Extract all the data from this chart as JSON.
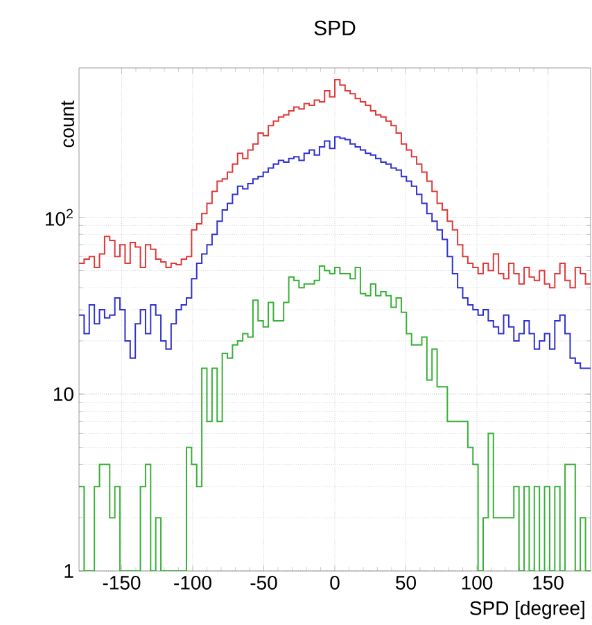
{
  "chart_data": {
    "type": "histogram",
    "title": "SPD",
    "xlabel": "SPD [degree]",
    "ylabel": "count",
    "bins": [
      -180,
      -176.4,
      -172.8,
      -169.2,
      -165.6,
      -162,
      -158.4,
      -154.8,
      -151.2,
      -147.6,
      -144,
      -140.4,
      -136.8,
      -133.2,
      -129.6,
      -126,
      -122.4,
      -118.8,
      -115.2,
      -111.6,
      -108,
      -104.4,
      -100.8,
      -97.2,
      -93.6,
      -90,
      -86.4,
      -82.8,
      -79.2,
      -75.6,
      -72,
      -68.4,
      -64.8,
      -61.2,
      -57.6,
      -54,
      -50.4,
      -46.8,
      -43.2,
      -39.6,
      -36,
      -32.4,
      -28.8,
      -25.2,
      -21.6,
      -18,
      -14.4,
      -10.8,
      -7.2,
      -3.6,
      0,
      3.6,
      7.2,
      10.8,
      14.4,
      18,
      21.6,
      25.2,
      28.8,
      32.4,
      36,
      39.6,
      43.2,
      46.8,
      50.4,
      54,
      57.6,
      61.2,
      64.8,
      68.4,
      72,
      75.6,
      79.2,
      82.8,
      86.4,
      90,
      93.6,
      97.2,
      100.8,
      104.4,
      108,
      111.6,
      115.2,
      118.8,
      122.4,
      126,
      129.6,
      133.2,
      136.8,
      140.4,
      144,
      147.6,
      151.2,
      154.8,
      158.4,
      162,
      165.6,
      169.2,
      172.8,
      176.4,
      180
    ],
    "series": [
      {
        "color": "#e03838",
        "values": [
          55,
          58,
          60,
          52,
          62,
          78,
          74,
          60,
          70,
          55,
          72,
          68,
          52,
          70,
          66,
          58,
          56,
          52,
          55,
          54,
          58,
          60,
          85,
          92,
          105,
          120,
          140,
          160,
          165,
          180,
          200,
          230,
          215,
          240,
          260,
          300,
          290,
          330,
          350,
          370,
          380,
          400,
          420,
          410,
          440,
          430,
          460,
          450,
          520,
          480,
          600,
          560,
          520,
          500,
          470,
          450,
          430,
          400,
          380,
          370,
          350,
          330,
          300,
          260,
          240,
          220,
          200,
          180,
          160,
          140,
          120,
          110,
          95,
          85,
          70,
          60,
          55,
          52,
          48,
          55,
          50,
          62,
          48,
          45,
          55,
          48,
          42,
          52,
          46,
          44,
          50,
          42,
          40,
          48,
          55,
          44,
          40,
          52,
          48,
          42
        ]
      },
      {
        "color": "#3030d0",
        "values": [
          28,
          22,
          32,
          25,
          30,
          27,
          28,
          35,
          30,
          20,
          16,
          25,
          30,
          22,
          32,
          28,
          20,
          18,
          25,
          30,
          32,
          35,
          45,
          55,
          62,
          70,
          80,
          95,
          110,
          120,
          135,
          150,
          145,
          155,
          165,
          170,
          180,
          190,
          200,
          210,
          205,
          215,
          220,
          210,
          230,
          240,
          225,
          250,
          270,
          245,
          285,
          280,
          275,
          260,
          250,
          240,
          230,
          225,
          215,
          205,
          200,
          190,
          185,
          170,
          160,
          150,
          135,
          120,
          105,
          95,
          85,
          75,
          60,
          48,
          40,
          35,
          32,
          30,
          28,
          30,
          26,
          24,
          22,
          28,
          24,
          20,
          22,
          26,
          22,
          18,
          20,
          22,
          18,
          26,
          28,
          22,
          16,
          15,
          14,
          14
        ]
      },
      {
        "color": "#38b038",
        "values": [
          3,
          1,
          1,
          3,
          4,
          4,
          2,
          3,
          1,
          1,
          1,
          1,
          3,
          4,
          1,
          2,
          1,
          1,
          1,
          1,
          1,
          5,
          4,
          3,
          14,
          7,
          14,
          7,
          17,
          16,
          19,
          20,
          22,
          21,
          34,
          26,
          24,
          33,
          26,
          26,
          33,
          46,
          44,
          40,
          42,
          42,
          44,
          53,
          50,
          48,
          52,
          48,
          48,
          45,
          52,
          37,
          36,
          42,
          36,
          38,
          36,
          31,
          35,
          29,
          22,
          19,
          19,
          21,
          12,
          18,
          11,
          11,
          7,
          7,
          7,
          7,
          5,
          4,
          1,
          2,
          6,
          2,
          2,
          2,
          2,
          3,
          1,
          3,
          1,
          3,
          1,
          3,
          1,
          3,
          1,
          4,
          4,
          1,
          2,
          1
        ]
      }
    ],
    "xlim": [
      -180,
      180
    ],
    "ylim": [
      1,
      700
    ],
    "log": true,
    "grid": true,
    "xticks": [
      -150,
      -100,
      -50,
      0,
      50,
      100,
      150
    ],
    "yticks": [
      1,
      10,
      {
        "value": 100,
        "label": "10$^{2}$"
      }
    ]
  }
}
